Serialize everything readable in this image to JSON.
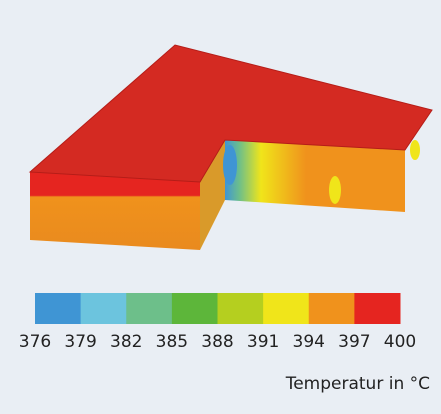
{
  "colorbar": {
    "ticks": [
      376,
      379,
      382,
      385,
      388,
      391,
      394,
      397,
      400
    ],
    "colors": [
      "#3f95d4",
      "#6cc4de",
      "#6dbf8a",
      "#5db63a",
      "#b5cf1f",
      "#f0e51a",
      "#f0921c",
      "#e52520"
    ],
    "label": "Temperatur in °C"
  }
}
